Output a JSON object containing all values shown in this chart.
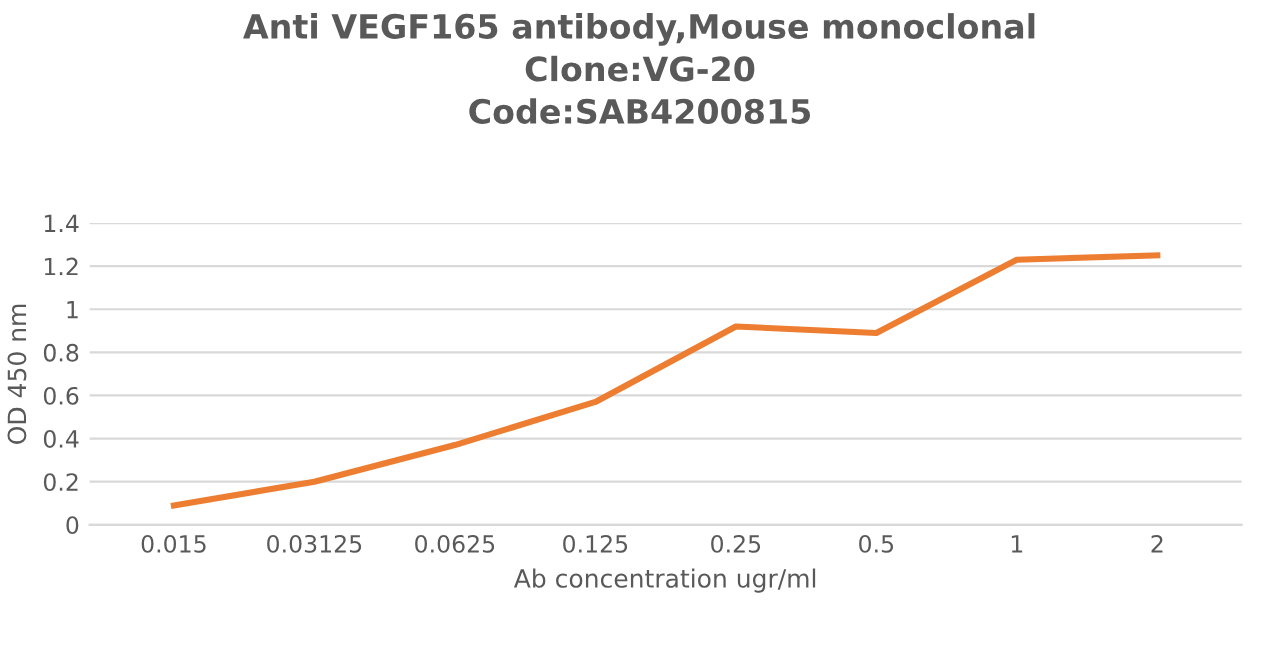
{
  "chart_data": {
    "type": "line",
    "title": "Anti VEGF165 antibody,Mouse monoclonal\nClone:VG-20\nCode:SAB4200815",
    "xlabel": "Ab concentration ugr/ml",
    "ylabel": "OD 450 nm",
    "categories": [
      "0.015",
      "0.03125",
      "0.0625",
      "0.125",
      "0.25",
      "0.5",
      "1",
      "2"
    ],
    "series": [
      {
        "color": "#ed7d31",
        "values": [
          0.09,
          0.2,
          0.37,
          0.57,
          0.92,
          0.89,
          1.23,
          1.25
        ]
      }
    ],
    "ylim": [
      0,
      1.4
    ],
    "yticks": [
      0,
      0.2,
      0.4,
      0.6,
      0.8,
      1,
      1.2,
      1.4
    ],
    "grid": "y",
    "legend": false,
    "marker": "none",
    "line_style": "solid"
  }
}
